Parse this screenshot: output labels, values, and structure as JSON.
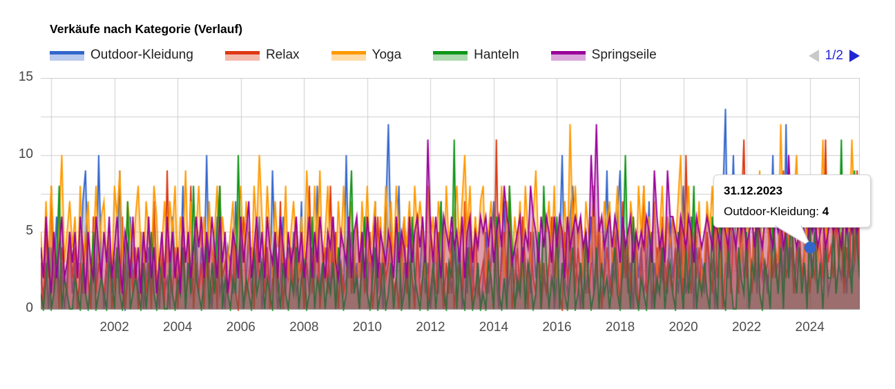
{
  "pagination": {
    "label": "1/2",
    "prev_icon": "left-triangle-icon",
    "next_icon": "right-triangle-icon",
    "prev_color": "#c9c9c9",
    "next_color": "#2126d2",
    "label_color": "#2126d2"
  },
  "tooltip": {
    "date": "31.12.2023",
    "series_label": "Outdoor-Kleidung: ",
    "value": "4"
  },
  "chart_data": {
    "type": "line",
    "title": "Verkäufe nach Kategorie (Verlauf)",
    "xlabel": "",
    "ylabel": "",
    "ylim": [
      0,
      15
    ],
    "y_ticks": [
      0,
      5,
      10,
      15
    ],
    "y_minor_grid_step": 2.5,
    "x_ticks": [
      "2002",
      "2004",
      "2006",
      "2008",
      "2010",
      "2012",
      "2014",
      "2016",
      "2018",
      "2020",
      "2022",
      "2024"
    ],
    "x_range_years": [
      1999.67,
      2025.58
    ],
    "x_grid_years": [
      2000,
      2002,
      2004,
      2006,
      2008,
      2010,
      2012,
      2014,
      2016,
      2018,
      2020,
      2022,
      2024
    ],
    "grid_color": "#cccccc",
    "baseline_color": "#999999",
    "legend_position": "top",
    "points_per_series": 312,
    "point_interval": "monthly",
    "value_encoding": "one character per monthly point: 0-9 literal, a=10, b=11, c=12, d=13",
    "series": [
      {
        "name": "Outdoor-Kleidung",
        "color": "#3366CC",
        "values": [
          "213042613025",
          "1302792041a3",
          "024132910362",
          "315024172031",
          "206312804125",
          "142a20361204",
          "317240251326",
          "024193026142",
          "512703142813",
          "24160231a251",
          "305214271306",
          "c41280315214",
          "261302417203",
          "142503162130",
          "251372047123",
          "412603152402",
          "135024a21683",
          "204136125039",
          "132692413052",
          "412703152316",
          "241381260423",
          "15230627d24a",
          "316240251723",
          "14a2361c2413",
          "523142613251",
          "261324152362"
        ]
      },
      {
        "name": "Relax",
        "color": "#DC3912",
        "values": [
          "305281304215",
          "240315206132",
          "135024160231",
          "402513072140",
          "921403512803",
          "130521408231",
          "251036124052",
          "314025170324",
          "162304813502",
          "418250312613",
          "204135026142",
          "351204613205",
          "124063152031",
          "502317240612",
          "31420b135280",
          "241630521403",
          "136241052371",
          "420513826024",
          "215307241630",
          "381250426132",
          "14260a315241",
          "253162403715",
          "416b25138242",
          "362415923614",
          "5246132742b3",
          "426351428392"
        ]
      },
      {
        "name": "Yoga",
        "color": "#FF9900",
        "values": [
          "52738426a357",
          "462835724836",
          "735286942753",
          "684275386247",
          "375826493725",
          "846273582643",
          "57268374285a",
          "638527463825",
          "742639528493",
          "583627483572",
          "627483572638",
          "473852647385",
          "752846375284",
          "36847a583647",
          "825736482753",
          "647285369427",
          "573826473c58",
          "462753846275",
          "735826437528",
          "584637258364",
          "647a25836472",
          "375846273856",
          "853674285937",
          "62743c58467a",
          "583746835b47",
          "74856375b685"
        ]
      },
      {
        "name": "Hanteln",
        "color": "#109618",
        "values": [
          "102401380210",
          "021031025012",
          "103204102701",
          "210302510320",
          "031021403182",
          "102403158021",
          "021a30210412",
          "302105203102",
          "140230160213",
          "021304201591",
          "203610240130",
          "130250130621",
          "024013027103",
          "2b0310420130",
          "103206102084",
          "021403201508",
          "302160310240",
          "130520140312",
          "024103a20610",
          "210350214023",
          "105204138021",
          "310620710420",
          "042150326103",
          "206314052731",
          "413062513042",
          "2513b2631942"
        ]
      },
      {
        "name": "Springseile",
        "color": "#990099",
        "values": [
          "426315246235",
          "352641532642",
          "536246315426",
          "241536241352",
          "635241635246",
          "462536426351",
          "354263572463",
          "526435264253",
          "463524625364",
          "254632543625",
          "635264362543",
          "542635426356",
          "463b53642654",
          "645362563546",
          "564635648653",
          "456354865364",
          "653646526456",
          "56453a6c5645",
          "646536456354",
          "546539645396",
          "654654653654",
          "565465465465",
          "465645646546",
          "65465645a654",
          "565465645645",
          "656546565656"
        ]
      }
    ],
    "highlight": {
      "series_index": 0,
      "point_index": 292,
      "value": 4,
      "date": "31.12.2023"
    }
  }
}
